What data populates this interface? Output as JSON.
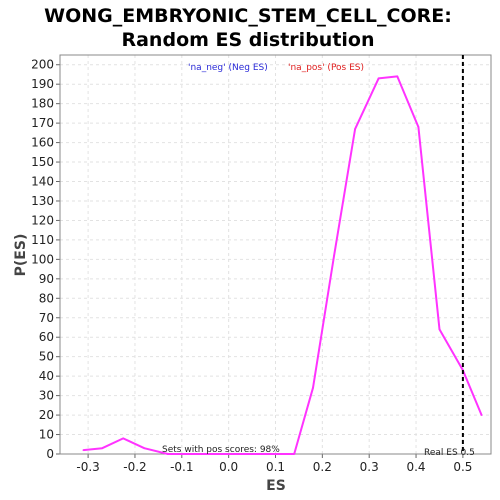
{
  "chart_data": {
    "type": "line",
    "title_line1": "WONG_EMBRYONIC_STEM_CELL_CORE:",
    "title_line2": "Random ES distribution",
    "xlabel": "ES",
    "ylabel": "P(ES)",
    "xlim": [
      -0.36,
      0.56
    ],
    "ylim": [
      0,
      205
    ],
    "x_ticks": [
      "-0.3",
      "-0.2",
      "-0.1",
      "0.0",
      "0.1",
      "0.2",
      "0.3",
      "0.4",
      "0.5"
    ],
    "y_ticks": [
      "0",
      "10",
      "20",
      "30",
      "40",
      "50",
      "60",
      "70",
      "80",
      "90",
      "100",
      "110",
      "120",
      "130",
      "140",
      "150",
      "160",
      "170",
      "180",
      "190",
      "200"
    ],
    "grid": true,
    "legend": {
      "neg": "'na_neg' (Neg ES)",
      "pos": "'na_pos' (Pos ES)",
      "placement": "top-center"
    },
    "series": [
      {
        "color": "#ff33ff",
        "x": [
          -0.31,
          -0.27,
          -0.225,
          -0.18,
          -0.13,
          -0.09,
          -0.04,
          0.0,
          0.04,
          0.09,
          0.14,
          0.18,
          0.225,
          0.27,
          0.32,
          0.36,
          0.405,
          0.45,
          0.5,
          0.54
        ],
        "y": [
          2,
          3,
          8,
          3,
          0,
          0,
          0,
          0,
          0,
          0,
          0,
          34,
          102,
          167,
          193,
          194,
          168,
          64,
          43,
          20
        ]
      }
    ],
    "vline": {
      "x": 0.5,
      "label": "Real ES 0.5"
    },
    "annotation": "Sets with pos scores: 98%",
    "colors": {
      "line": "#ff33ff",
      "vline": "#000000",
      "grid": "#e2e2e2"
    }
  }
}
